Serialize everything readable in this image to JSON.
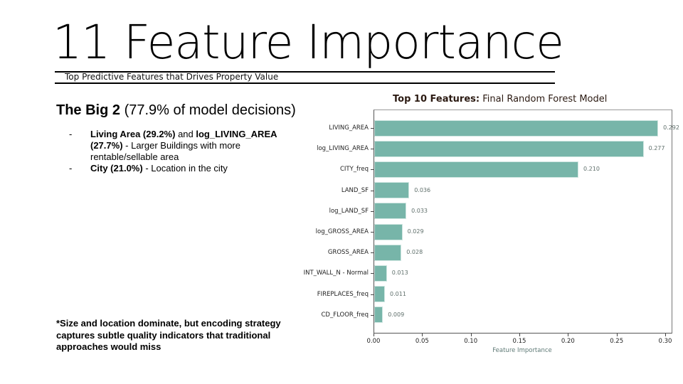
{
  "slide": {
    "title": "11 Feature Importance",
    "subtitle": "Top Predictive Features that Drives Property Value"
  },
  "left": {
    "big2_bold": "The Big 2",
    "big2_rest": " (77.9% of model decisions)",
    "bullets": [
      {
        "dash": "-",
        "parts": [
          {
            "text": "Living Area (29.2%)",
            "bold": true
          },
          {
            "text": " and ",
            "bold": false
          },
          {
            "text": "log_LIVING_AREA (27.7%)",
            "bold": true
          },
          {
            "text": " - Larger Buildings with more rentable/sellable area",
            "bold": false
          }
        ]
      },
      {
        "dash": "-",
        "parts": [
          {
            "text": "City (21.0%)",
            "bold": true
          },
          {
            "text": " - Location in the city",
            "bold": false
          }
        ]
      }
    ],
    "note": "*Size and location dominate, but encoding strategy captures subtle quality indicators that traditional approaches would miss"
  },
  "chart_title": {
    "bold": "Top 10 Features:",
    "rest": " Final Random Forest Model"
  },
  "colors": {
    "bar": "#77b5a9",
    "chart_title": "#2b1a12",
    "axis_title": "#5f7a76"
  },
  "chart_data": {
    "type": "bar",
    "orientation": "horizontal",
    "title": "Top 10 Features: Final Random Forest Model",
    "xlabel": "Feature Importance",
    "ylabel": "",
    "xlim": [
      0,
      0.3
    ],
    "grid": false,
    "legend": null,
    "categories": [
      "LIVING_AREA",
      "log_LIVING_AREA",
      "CITY_freq",
      "LAND_SF",
      "log_LAND_SF",
      "log_GROSS_AREA",
      "GROSS_AREA",
      "INT_WALL_N - Normal",
      "FIREPLACES_freq",
      "CD_FLOOR_freq"
    ],
    "values": [
      0.292,
      0.277,
      0.21,
      0.036,
      0.033,
      0.029,
      0.028,
      0.013,
      0.011,
      0.009
    ],
    "value_labels": [
      "0.292",
      "0.277",
      "0.210",
      "0.036",
      "0.033",
      "0.029",
      "0.028",
      "0.013",
      "0.011",
      "0.009"
    ],
    "xticks": [
      "0.00",
      "0.05",
      "0.10",
      "0.15",
      "0.20",
      "0.25",
      "0.30"
    ]
  }
}
